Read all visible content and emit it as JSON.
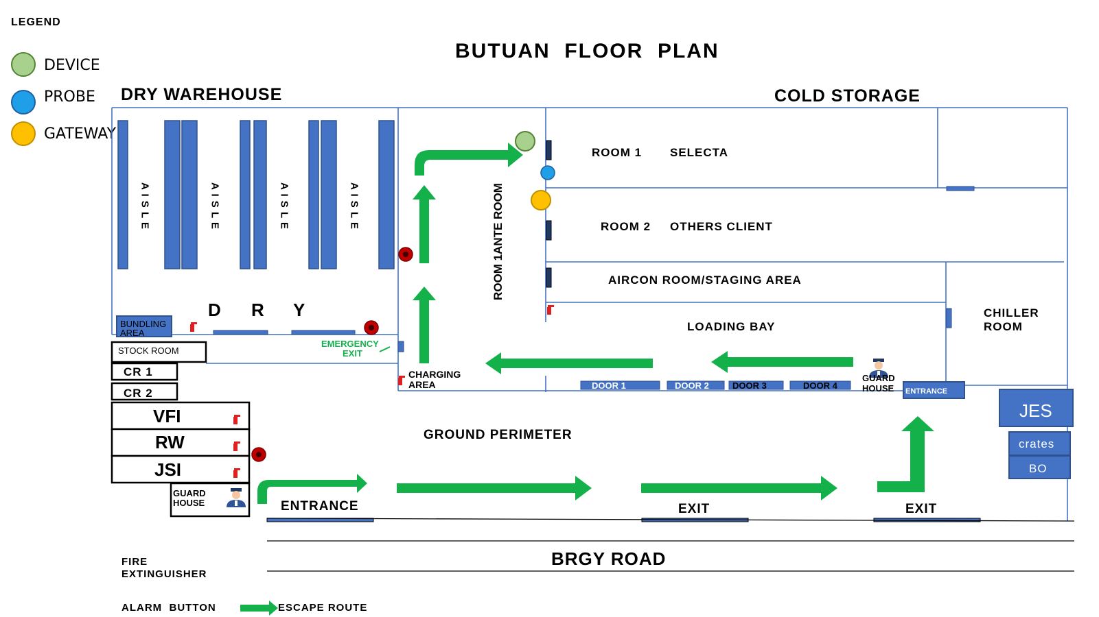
{
  "title": "BUTUAN  FLOOR  PLAN",
  "legend": {
    "heading": "LEGEND",
    "items": [
      {
        "label": "DEVICE",
        "color": "#a9d18e"
      },
      {
        "label": "PROBE",
        "color": "#1f9fe8"
      },
      {
        "label": "GATEWAY",
        "color": "#ffc000"
      }
    ],
    "fire_extinguisher_line1": "FIRE",
    "fire_extinguisher_line2": "EXTINGUISHER",
    "alarm_button": "ALARM  BUTTON",
    "escape_route": "ESCAPE ROUTE"
  },
  "sections": {
    "dry_warehouse": "DRY WAREHOUSE",
    "cold_storage": "COLD STORAGE"
  },
  "dry": {
    "aisle_label": "A I S L E",
    "letter1": "D",
    "letter2": "R",
    "letter3": "Y",
    "bundling_line1": "BUNDLING",
    "bundling_line2": "AREA",
    "emergency_line1": "EMERGENCY",
    "emergency_line2": "EXIT"
  },
  "left_rooms": {
    "stock_room": "STOCK ROOM",
    "cr1": "CR 1",
    "cr2": "CR 2",
    "vfi": "VFI",
    "rw": "RW",
    "jsi": "JSI",
    "guard_line1": "GUARD",
    "guard_line2": "HOUSE"
  },
  "ante_room": "ROOM 1ANTE ROOM",
  "charging_line1": "CHARGING",
  "charging_line2": "AREA",
  "cold_rooms": {
    "room1": "ROOM 1",
    "room1_client": "SELECTA",
    "room2": "ROOM 2",
    "room2_client": "OTHERS CLIENT",
    "aircon": "AIRCON ROOM/STAGING AREA",
    "loading_bay": "LOADING BAY",
    "chiller_line1": "CHILLER",
    "chiller_line2": "ROOM",
    "guard_line1": "GUARD",
    "guard_line2": "HOUSE",
    "entrance_box": "ENTRANCE"
  },
  "doors": [
    "DOOR 1",
    "DOOR 2",
    "DOOR 3",
    "DOOR 4"
  ],
  "right_blocks": {
    "jes": "JES",
    "crates": "crates",
    "bo": "BO"
  },
  "ground": {
    "perimeter": "GROUND PERIMETER",
    "entrance": "ENTRANCE",
    "exit1": "EXIT",
    "exit2": "EXIT",
    "road": "BRGY ROAD"
  }
}
